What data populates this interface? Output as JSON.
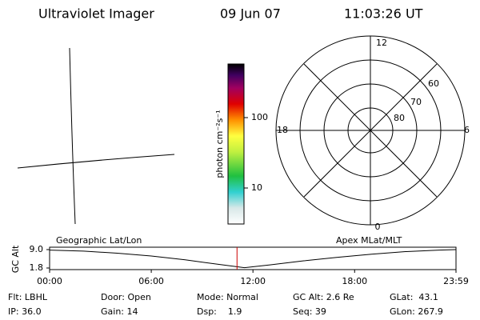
{
  "header": {
    "title": "Ultraviolet Imager",
    "date": "09 Jun 07",
    "time": "11:03:26 UT"
  },
  "colorbar": {
    "label": "photon cm⁻²s⁻¹",
    "ticks": [
      "100",
      "10"
    ]
  },
  "polar": {
    "hours": {
      "top": "12",
      "right": "6",
      "bottom": "0",
      "left": "18"
    },
    "latitudes": [
      "60",
      "70",
      "80"
    ]
  },
  "timeline": {
    "left_label": "Geographic Lat/Lon",
    "right_label": "Apex MLat/MLT",
    "y_label": "GC Alt",
    "ylim": [
      1.8,
      9.0
    ],
    "yticks": [
      {
        "value": 9.0,
        "label": "9.0"
      },
      {
        "value": 1.8,
        "label": "1.8"
      }
    ],
    "xlim": [
      0,
      23.983
    ],
    "xticks": [
      {
        "value": 0,
        "label": "00:00"
      },
      {
        "value": 6,
        "label": "06:00"
      },
      {
        "value": 12,
        "label": "12:00"
      },
      {
        "value": 18,
        "label": "18:00"
      },
      {
        "value": 23.983,
        "label": "23:59"
      }
    ],
    "x": [
      0,
      2,
      4,
      6,
      8,
      10,
      11.5,
      13,
      15,
      17,
      19,
      21,
      23,
      23.983
    ],
    "values": [
      8.8,
      8.4,
      7.6,
      6.5,
      5.0,
      3.2,
      1.9,
      3.0,
      4.6,
      6.0,
      7.2,
      8.2,
      8.8,
      9.0
    ],
    "current_time": 11.06,
    "line_color": "#000000",
    "marker_color": "#cc0000"
  },
  "footer": {
    "rows": [
      [
        "Flt: LBHL",
        "Door: Open",
        "Mode: Normal",
        "GC Alt: 2.6 Re",
        "GLat:  43.1"
      ],
      [
        "IP: 36.0",
        "Gain: 14",
        "Dsp:    1.9",
        "Seq: 39",
        "GLon: 267.9"
      ]
    ]
  }
}
